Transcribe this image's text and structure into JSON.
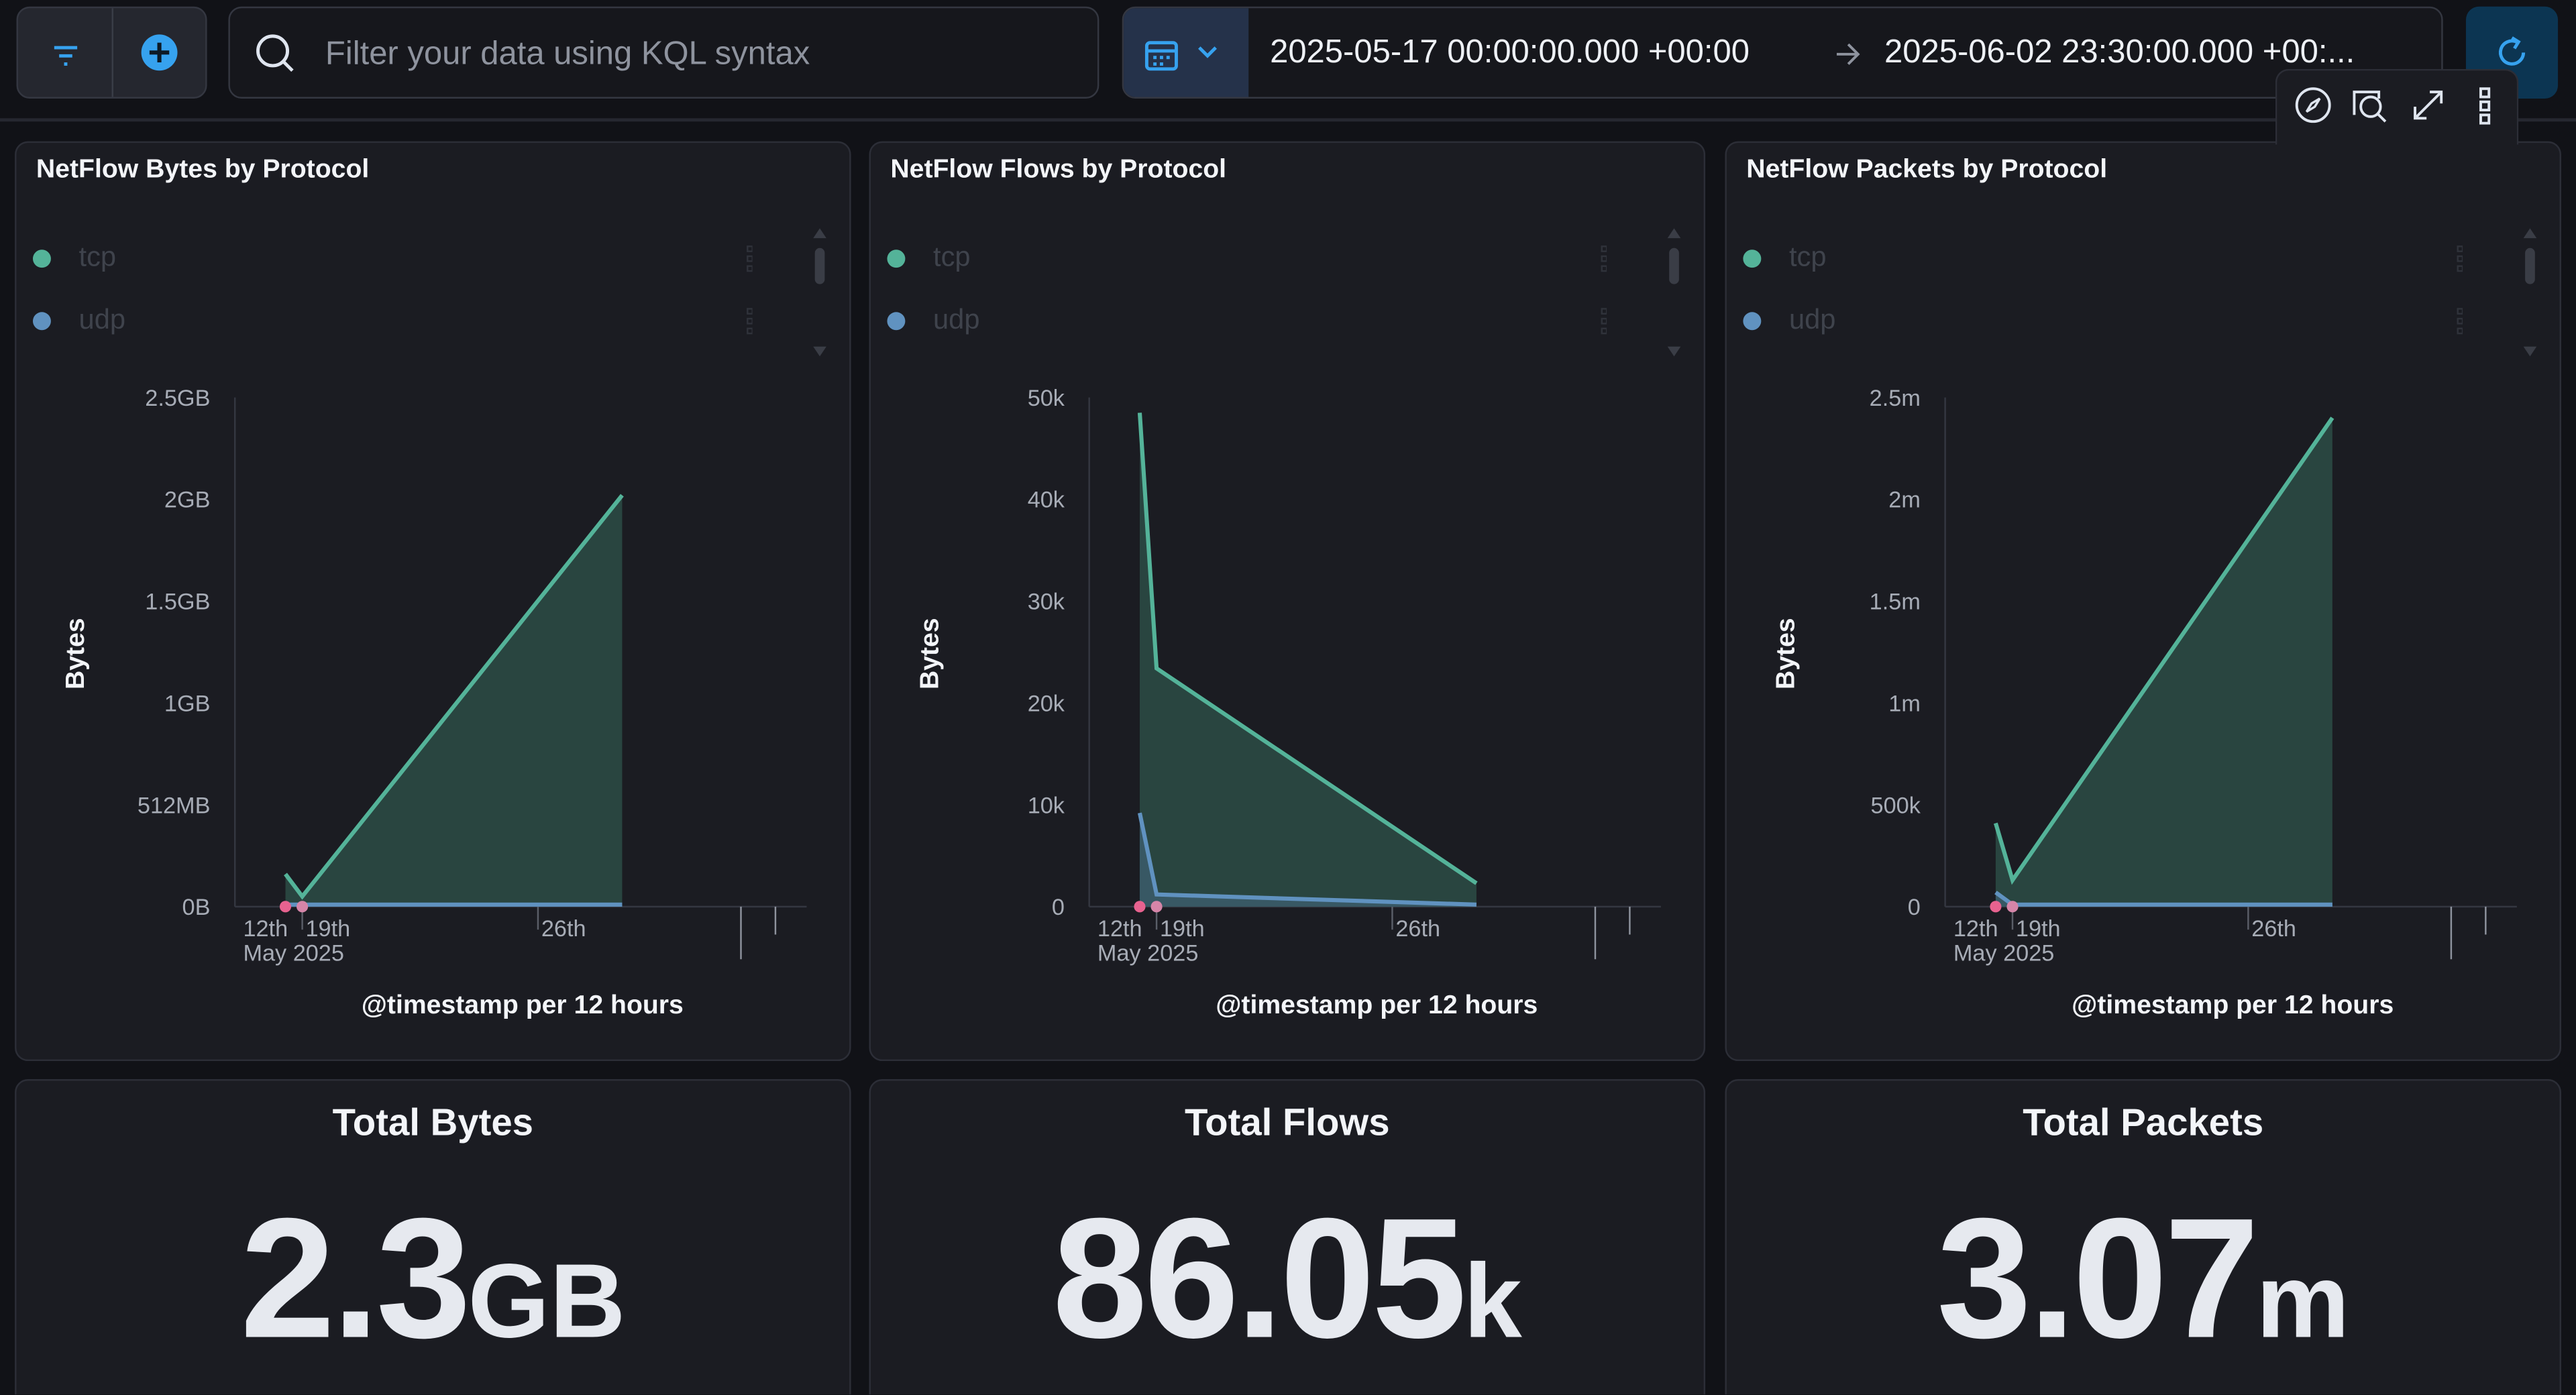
{
  "query_bar": {
    "search_placeholder": "Filter your data using KQL syntax",
    "time_start": "2025-05-17 00:00:00.000 +00:00",
    "time_end": "2025-06-02 23:30:00.000 +00:...",
    "icons": [
      "filter-icon",
      "add-filter-icon",
      "search-icon",
      "calendar-icon",
      "chevron-down-icon",
      "arrow-right-icon",
      "refresh-icon"
    ]
  },
  "panel_toolbar": {
    "icons": [
      "explore-icon",
      "inspect-icon",
      "maximize-icon",
      "options-icon"
    ]
  },
  "colors": {
    "tcp": "#54b399",
    "udp": "#6092c0",
    "area_tcp": "#2b4a44",
    "area_udp": "#3a5a68",
    "marker": "#e7628f",
    "accent": "#36a2ef"
  },
  "chart_data": [
    {
      "type": "area",
      "title": "NetFlow Bytes by Protocol",
      "ylabel": "Bytes",
      "xlabel": "@timestamp per 12 hours",
      "x_ticks": [
        "12th\nMay 2025",
        "19th",
        "26th"
      ],
      "y_ticks": [
        "0B",
        "512MB",
        "1GB",
        "1.5GB",
        "2GB",
        "2.5GB"
      ],
      "y_unit": "GB",
      "ylim": [
        0,
        2.5
      ],
      "xlim": [
        "2025-05-17T00:00",
        "2025-06-02T23:30"
      ],
      "x": [
        "2025-05-18T12:00",
        "2025-05-19T00:00",
        "2025-05-28T12:00"
      ],
      "series": [
        {
          "name": "tcp",
          "values": [
            0.16,
            0.05,
            2.02
          ]
        },
        {
          "name": "udp",
          "values": [
            0.01,
            0.01,
            0.01
          ]
        }
      ],
      "markers": [
        "2025-05-18T12:00",
        "2025-05-19T00:00"
      ],
      "legend": [
        "tcp",
        "udp"
      ],
      "legend_position": "top-left"
    },
    {
      "type": "area",
      "title": "NetFlow Flows by Protocol",
      "ylabel": "Bytes",
      "xlabel": "@timestamp per 12 hours",
      "x_ticks": [
        "12th\nMay 2025",
        "19th",
        "26th"
      ],
      "y_ticks": [
        "0",
        "10k",
        "20k",
        "30k",
        "40k",
        "50k"
      ],
      "y_unit": "k",
      "ylim": [
        0,
        50
      ],
      "xlim": [
        "2025-05-17T00:00",
        "2025-06-02T23:30"
      ],
      "x": [
        "2025-05-18T12:00",
        "2025-05-19T00:00",
        "2025-05-28T12:00"
      ],
      "series": [
        {
          "name": "tcp",
          "values": [
            48.5,
            23.4,
            2.3
          ]
        },
        {
          "name": "udp",
          "values": [
            9.2,
            1.2,
            0.2
          ]
        }
      ],
      "markers": [
        "2025-05-18T12:00",
        "2025-05-19T00:00"
      ],
      "legend": [
        "tcp",
        "udp"
      ],
      "legend_position": "top-left"
    },
    {
      "type": "area",
      "title": "NetFlow Packets by Protocol",
      "ylabel": "Bytes",
      "xlabel": "@timestamp per 12 hours",
      "x_ticks": [
        "12th\nMay 2025",
        "19th",
        "26th"
      ],
      "y_ticks": [
        "0",
        "500k",
        "1m",
        "1.5m",
        "2m",
        "2.5m"
      ],
      "y_unit": "m",
      "ylim": [
        0,
        2.5
      ],
      "xlim": [
        "2025-05-17T00:00",
        "2025-06-02T23:30"
      ],
      "x": [
        "2025-05-18T12:00",
        "2025-05-19T00:00",
        "2025-05-28T12:00"
      ],
      "series": [
        {
          "name": "tcp",
          "values": [
            0.41,
            0.13,
            2.4
          ]
        },
        {
          "name": "udp",
          "values": [
            0.07,
            0.01,
            0.01
          ]
        }
      ],
      "markers": [
        "2025-05-18T12:00",
        "2025-05-19T00:00"
      ],
      "legend": [
        "tcp",
        "udp"
      ],
      "legend_position": "top-left"
    }
  ],
  "metrics": [
    {
      "title": "Total Bytes",
      "value": "2.3",
      "unit": "GB"
    },
    {
      "title": "Total Flows",
      "value": "86.05",
      "unit": "k"
    },
    {
      "title": "Total Packets",
      "value": "3.07",
      "unit": "m"
    }
  ]
}
